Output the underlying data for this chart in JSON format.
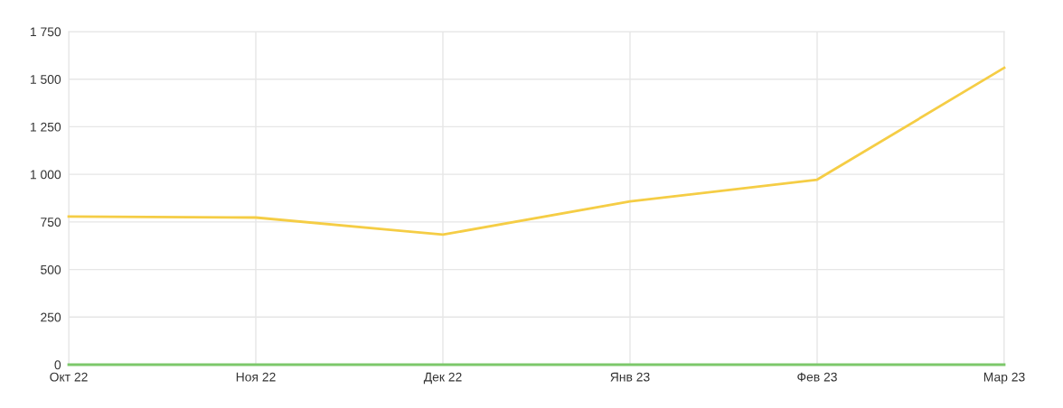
{
  "chart_data": {
    "type": "line",
    "categories": [
      "Окт 22",
      "Ноя 22",
      "Дек 22",
      "Янв 23",
      "Фев 23",
      "Мар 23"
    ],
    "series": [
      {
        "color": "#7cc86a",
        "values": [
          0,
          0,
          0,
          0,
          0,
          0
        ]
      },
      {
        "color": "#f5cd45",
        "values": [
          778,
          773,
          683,
          858,
          972,
          1560
        ]
      }
    ],
    "ylim": [
      0,
      1750
    ],
    "yticks": [
      0,
      250,
      500,
      750,
      {
        "value": 1000,
        "label": "1 000"
      },
      {
        "value": 1250,
        "label": "1 250"
      },
      {
        "value": 1500,
        "label": "1 500"
      },
      {
        "value": 1750,
        "label": "1 750"
      }
    ],
    "grid": true,
    "marker": "none",
    "line_style": "solid"
  }
}
